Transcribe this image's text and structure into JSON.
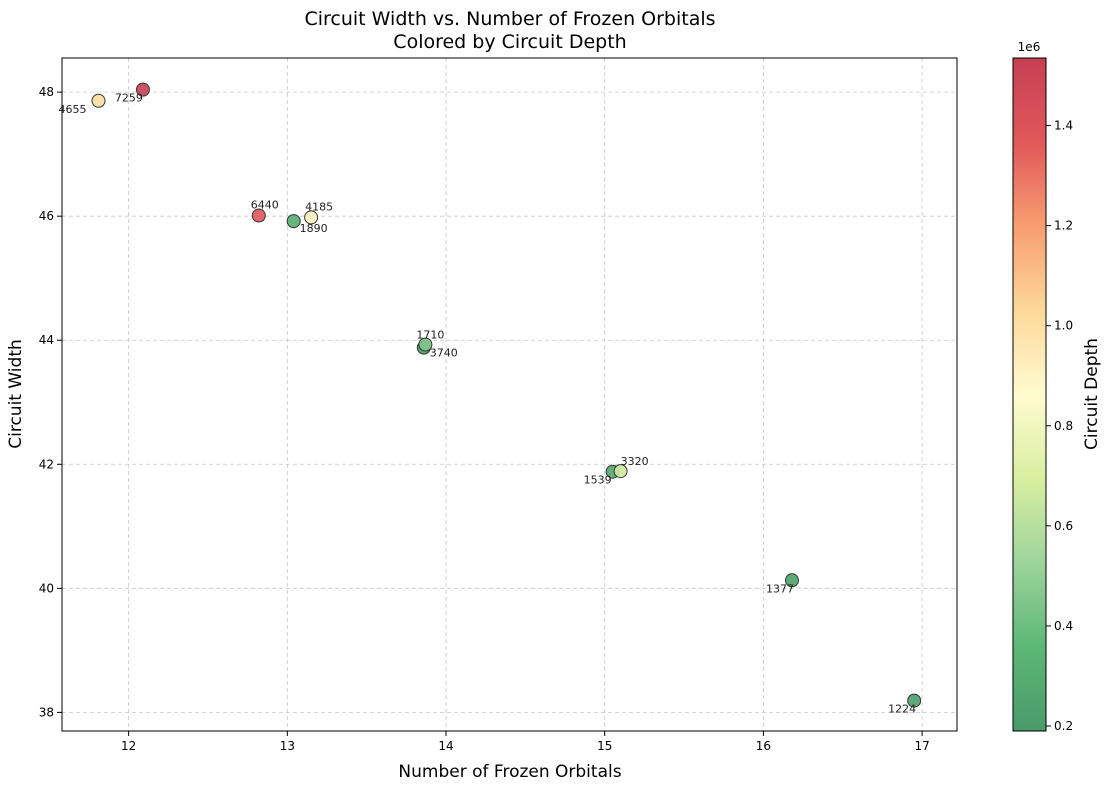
{
  "chart_data": {
    "type": "scatter",
    "title": "Circuit Width vs. Number of Frozen Orbitals\nColored by Circuit Depth",
    "xlabel": "Number of Frozen Orbitals",
    "ylabel": "Circuit Width",
    "xlim": [
      11.58,
      17.22
    ],
    "ylim": [
      37.7,
      48.55
    ],
    "xticks": [
      12,
      13,
      14,
      15,
      16,
      17
    ],
    "yticks": [
      38,
      40,
      42,
      44,
      46,
      48
    ],
    "grid": true,
    "colormap": "RdYlGn_r",
    "colorbar": {
      "label": "Circuit Depth",
      "min": 190000,
      "max": 1535000,
      "offset_label": "1e6",
      "ticks": [
        0.2,
        0.4,
        0.6,
        0.8,
        1.0,
        1.2,
        1.4
      ],
      "stops": [
        "#4a9a6a",
        "#5cb875",
        "#9dd49c",
        "#d9efa0",
        "#fffbd0",
        "#fdd89a",
        "#f89e71",
        "#e1585a",
        "#c64054"
      ]
    },
    "points": [
      {
        "x": 12.09,
        "y": 48.04,
        "depth": 1535000
      },
      {
        "x": 11.81,
        "y": 47.86,
        "depth": 1000000
      },
      {
        "x": 12.82,
        "y": 46.01,
        "depth": 1380000
      },
      {
        "x": 13.04,
        "y": 45.92,
        "depth": 300000
      },
      {
        "x": 13.15,
        "y": 45.98,
        "depth": 920000
      },
      {
        "x": 13.86,
        "y": 43.88,
        "depth": 200000
      },
      {
        "x": 13.87,
        "y": 43.93,
        "depth": 450000
      },
      {
        "x": 15.05,
        "y": 41.88,
        "depth": 260000
      },
      {
        "x": 15.1,
        "y": 41.89,
        "depth": 660000
      },
      {
        "x": 16.18,
        "y": 40.13,
        "depth": 230000
      },
      {
        "x": 16.95,
        "y": 38.19,
        "depth": 210000
      }
    ],
    "annotations": [
      {
        "text": "7259",
        "x": 12.09,
        "y": 48.04
      },
      {
        "text": "4655",
        "x": 11.81,
        "y": 47.86
      },
      {
        "text": "6440",
        "x": 12.82,
        "y": 46.01
      },
      {
        "text": "1890",
        "x": 13.04,
        "y": 45.92
      },
      {
        "text": "4185",
        "x": 13.15,
        "y": 45.98
      },
      {
        "text": "3740",
        "x": 13.86,
        "y": 43.88
      },
      {
        "text": "1710",
        "x": 13.87,
        "y": 43.93
      },
      {
        "text": "1539",
        "x": 15.05,
        "y": 41.88
      },
      {
        "text": "3320",
        "x": 15.1,
        "y": 41.89
      },
      {
        "text": "1377",
        "x": 16.18,
        "y": 40.13
      },
      {
        "text": "1224",
        "x": 16.95,
        "y": 38.19
      }
    ]
  }
}
